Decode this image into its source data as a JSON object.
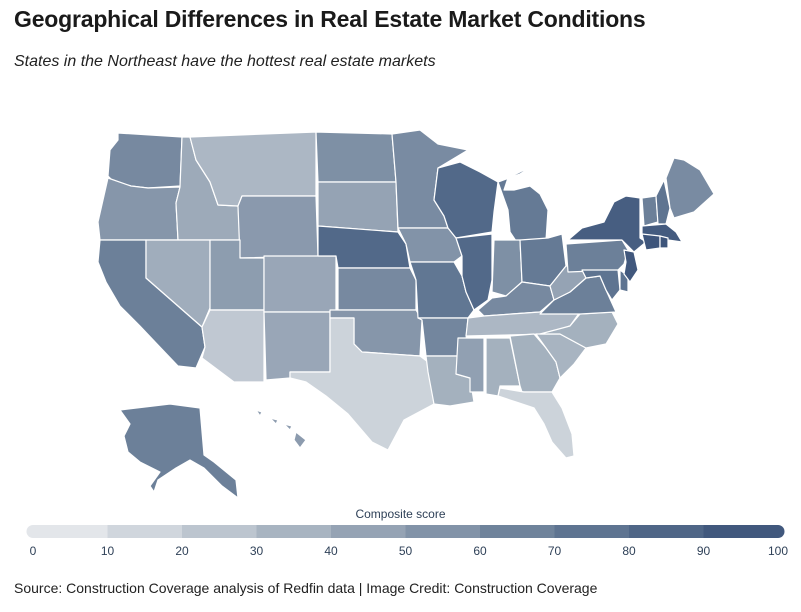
{
  "header": {
    "title": "Geographical Differences in Real Estate Market Conditions",
    "subtitle": "States in the Northeast have the hottest real estate markets"
  },
  "legend": {
    "title": "Composite score",
    "range": [
      0,
      100
    ],
    "ticks": [
      "0",
      "10",
      "20",
      "30",
      "40",
      "50",
      "60",
      "70",
      "80",
      "90",
      "100"
    ],
    "palette": [
      "#e3e6ea",
      "#d0d6dd",
      "#bcc5cf",
      "#a8b4c1",
      "#95a3b4",
      "#8293a8",
      "#6f839b",
      "#5e7491",
      "#4f6687",
      "#41587d",
      "#344b72"
    ]
  },
  "footer": {
    "source": "Source: Construction Coverage analysis of Redfin data | Image Credit: Construction Coverage"
  },
  "map_data": {
    "type": "choropleth",
    "region": "United States",
    "values": {
      "WA": 56,
      "OR": 48,
      "CA": 62,
      "NV": 34,
      "ID": 36,
      "MT": 28,
      "WY": 46,
      "UT": 44,
      "AZ": 18,
      "CO": 38,
      "NM": 38,
      "ND": 52,
      "SD": 40,
      "NE": 78,
      "KS": 56,
      "OK": 48,
      "TX": 12,
      "MN": 55,
      "IA": 50,
      "MO": 68,
      "AR": 58,
      "LA": 32,
      "WI": 78,
      "IL": 78,
      "MI": 66,
      "IN": 52,
      "OH": 66,
      "KY": 56,
      "TN": 28,
      "MS": 42,
      "AL": 32,
      "GA": 32,
      "FL": 12,
      "SC": 30,
      "NC": 32,
      "VA": 62,
      "WV": 40,
      "PA": 62,
      "NY": 86,
      "ME": 55,
      "VT": 62,
      "NH": 70,
      "MA": 88,
      "CT": 92,
      "RI": 92,
      "NJ": 90,
      "DE": 70,
      "MD": 70,
      "AK": 62,
      "HI": 45
    }
  }
}
